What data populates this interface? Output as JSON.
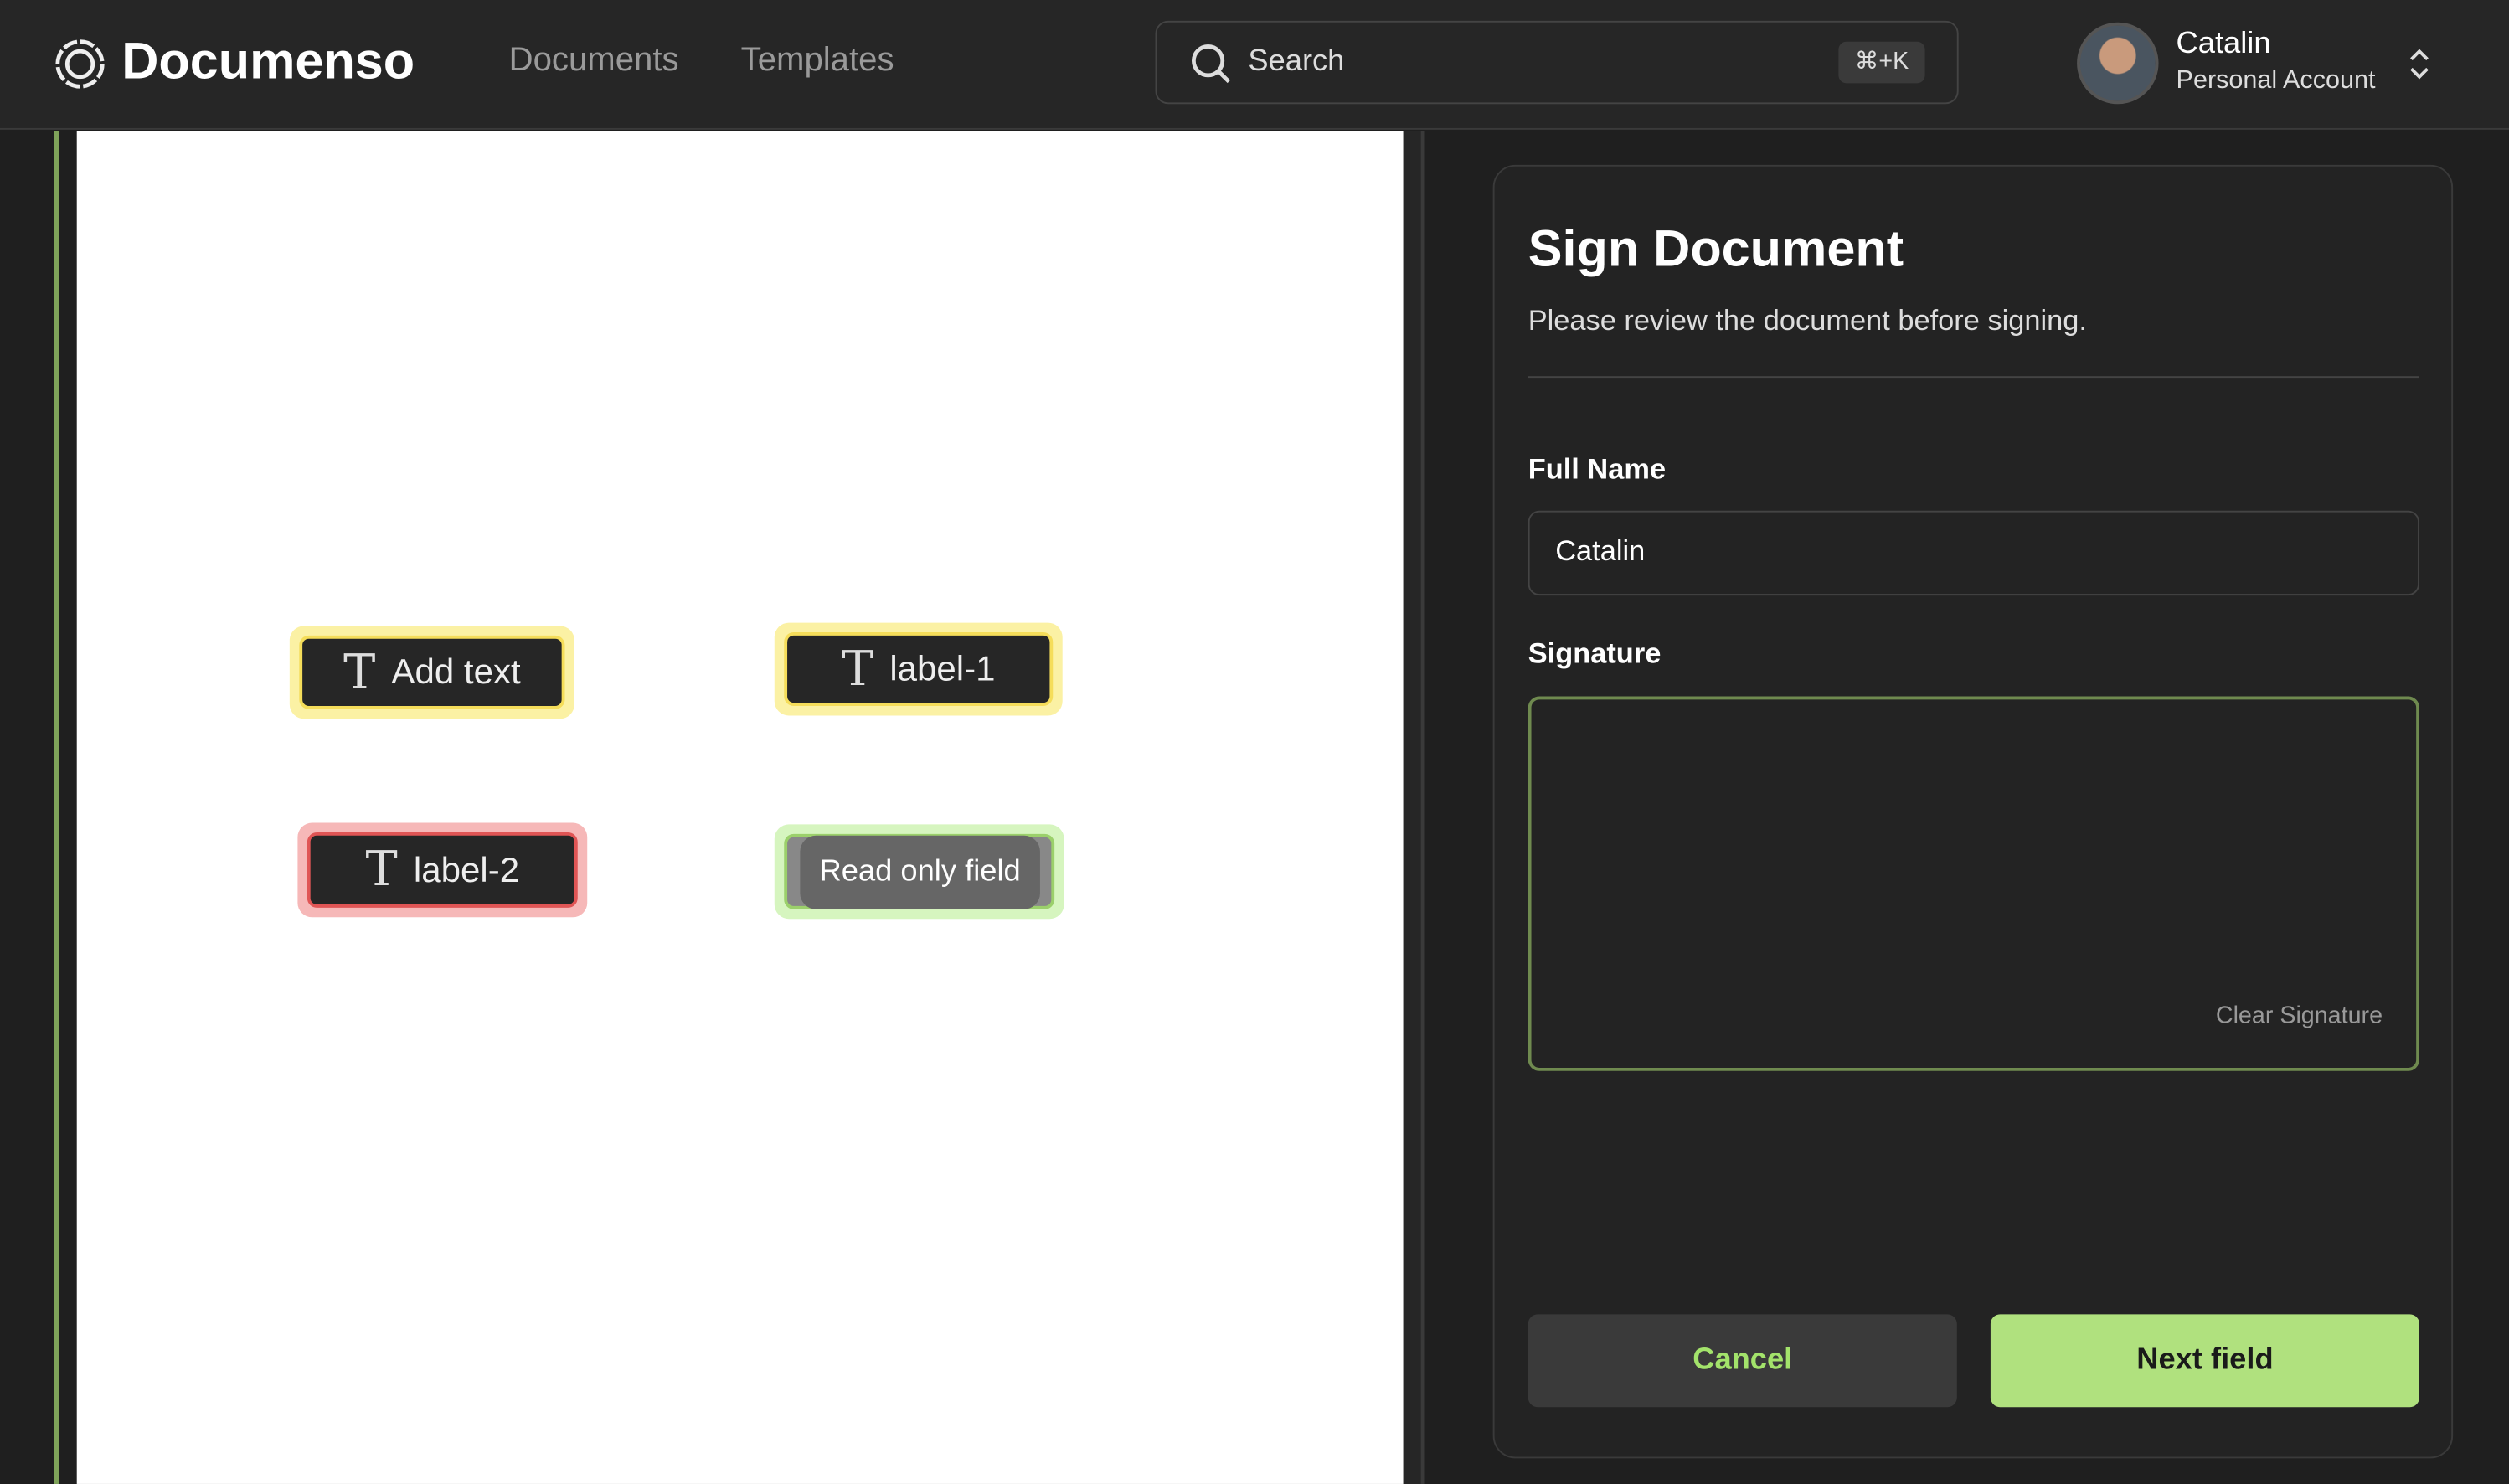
{
  "header": {
    "brand": "Documenso",
    "nav": [
      "Documents",
      "Templates"
    ],
    "search": {
      "placeholder": "Search",
      "shortcut": "⌘+K"
    },
    "user": {
      "name": "Catalin",
      "account": "Personal Account"
    }
  },
  "document": {
    "fields": [
      "Add text",
      "label-1",
      "label-2"
    ],
    "tooltip": "Read only field"
  },
  "panel": {
    "title": "Sign Document",
    "subtitle": "Please review the document before signing.",
    "full_name_label": "Full Name",
    "full_name_value": "Catalin",
    "signature_label": "Signature",
    "clear_signature": "Clear Signature",
    "cancel": "Cancel",
    "next": "Next field"
  }
}
